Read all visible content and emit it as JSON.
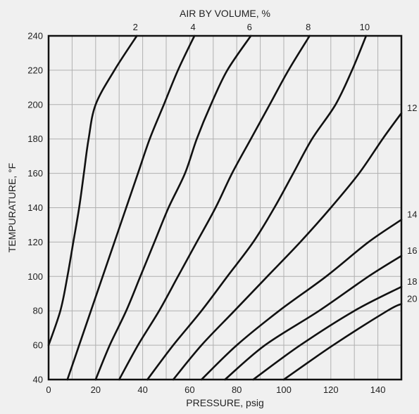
{
  "chart_data": {
    "type": "line",
    "title": "AIR BY VOLUME, %",
    "xlabel": "PRESSURE, psig",
    "ylabel": "TEMPURATURE, °F",
    "xlim": [
      0,
      150
    ],
    "ylim": [
      40,
      240
    ],
    "xticks": [
      0,
      20,
      40,
      60,
      80,
      100,
      120,
      140
    ],
    "yticks": [
      40,
      60,
      80,
      100,
      120,
      140,
      160,
      180,
      200,
      220,
      240
    ],
    "grid": true,
    "colors": {
      "background": "#f0f0f0",
      "line": "#111111",
      "grid": "#b0b0b0",
      "axis": "#111111"
    },
    "series": [
      {
        "name": "2",
        "label_position": "top",
        "points": [
          [
            0,
            60
          ],
          [
            5,
            80
          ],
          [
            8,
            100
          ],
          [
            10.5,
            120
          ],
          [
            13,
            140
          ],
          [
            15,
            160
          ],
          [
            17,
            180
          ],
          [
            20,
            200
          ],
          [
            28,
            220
          ],
          [
            37.5,
            240
          ]
        ]
      },
      {
        "name": "4",
        "label_position": "top",
        "points": [
          [
            8,
            40
          ],
          [
            13,
            60
          ],
          [
            18,
            80
          ],
          [
            23,
            100
          ],
          [
            28,
            120
          ],
          [
            33,
            140
          ],
          [
            38,
            160
          ],
          [
            43,
            180
          ],
          [
            49,
            200
          ],
          [
            55,
            220
          ],
          [
            62,
            240
          ]
        ]
      },
      {
        "name": "6",
        "label_position": "top",
        "points": [
          [
            20,
            40
          ],
          [
            26,
            60
          ],
          [
            33,
            80
          ],
          [
            39,
            100
          ],
          [
            45,
            120
          ],
          [
            51,
            140
          ],
          [
            58,
            160
          ],
          [
            63,
            180
          ],
          [
            69,
            200
          ],
          [
            76,
            220
          ],
          [
            86,
            240
          ]
        ]
      },
      {
        "name": "8",
        "label_position": "top",
        "points": [
          [
            30,
            40
          ],
          [
            38,
            60
          ],
          [
            47,
            80
          ],
          [
            55,
            100
          ],
          [
            63,
            120
          ],
          [
            71,
            140
          ],
          [
            78,
            160
          ],
          [
            86,
            180
          ],
          [
            94,
            200
          ],
          [
            102,
            220
          ],
          [
            111,
            240
          ]
        ]
      },
      {
        "name": "10",
        "label_position": "top",
        "points": [
          [
            42,
            40
          ],
          [
            53,
            60
          ],
          [
            65,
            80
          ],
          [
            76,
            100
          ],
          [
            87,
            120
          ],
          [
            96,
            140
          ],
          [
            104,
            160
          ],
          [
            112,
            180
          ],
          [
            122,
            200
          ],
          [
            129,
            220
          ],
          [
            135,
            240
          ]
        ]
      },
      {
        "name": "12",
        "label_position": "right",
        "points": [
          [
            53,
            40
          ],
          [
            65,
            60
          ],
          [
            79,
            80
          ],
          [
            93,
            100
          ],
          [
            107,
            120
          ],
          [
            120,
            140
          ],
          [
            132,
            160
          ],
          [
            142,
            180
          ],
          [
            150,
            195
          ]
        ]
      },
      {
        "name": "14",
        "label_position": "right",
        "points": [
          [
            65,
            40
          ],
          [
            80,
            60
          ],
          [
            98,
            80
          ],
          [
            118,
            100
          ],
          [
            136,
            120
          ],
          [
            150,
            133
          ]
        ]
      },
      {
        "name": "16",
        "label_position": "right",
        "points": [
          [
            75,
            40
          ],
          [
            92,
            60
          ],
          [
            115,
            80
          ],
          [
            136,
            100
          ],
          [
            150,
            112
          ]
        ]
      },
      {
        "name": "18",
        "label_position": "right",
        "points": [
          [
            87,
            40
          ],
          [
            107,
            60
          ],
          [
            130,
            80
          ],
          [
            150,
            94
          ]
        ]
      },
      {
        "name": "20",
        "label_position": "right",
        "points": [
          [
            100,
            40
          ],
          [
            121,
            60
          ],
          [
            144,
            80
          ],
          [
            150,
            84
          ]
        ]
      }
    ]
  }
}
